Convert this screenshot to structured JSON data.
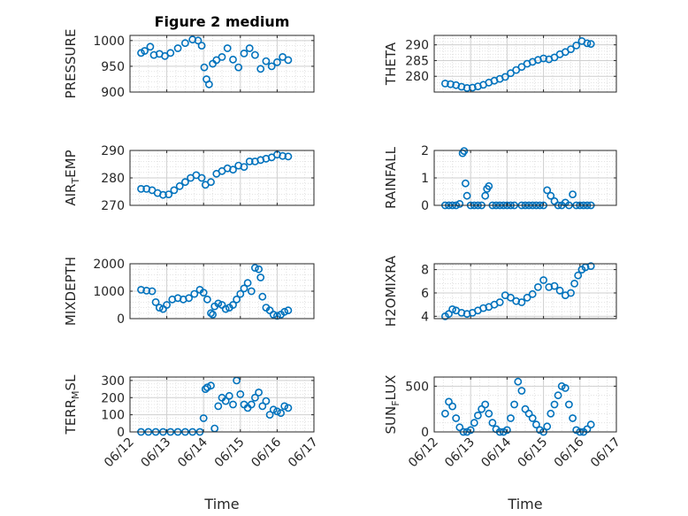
{
  "title": "Figure 2 medium",
  "xlabel": "Time",
  "x_ticks": [
    "06/12",
    "06/13",
    "06/14",
    "06/15",
    "06/16",
    "06/17"
  ],
  "colors": {
    "marker": "#0072bd",
    "axes": "#262626",
    "grid": "#dcdcdc",
    "background": "#ffffff"
  },
  "chart_data": [
    {
      "type": "scatter",
      "ylabel": "PRESSURE",
      "ylim": [
        900,
        1010
      ],
      "y_ticks": [
        "900",
        "950",
        "1000"
      ],
      "grid": true,
      "marker": "open-circle",
      "x": [
        12.3,
        12.4,
        12.55,
        12.65,
        12.8,
        12.95,
        13.1,
        13.3,
        13.5,
        13.7,
        13.85,
        13.95,
        14.02,
        14.08,
        14.15,
        14.25,
        14.35,
        14.5,
        14.65,
        14.8,
        14.95,
        15.1,
        15.25,
        15.4,
        15.55,
        15.7,
        15.85,
        16.0,
        16.15,
        16.3
      ],
      "y": [
        976,
        980,
        988,
        972,
        974,
        970,
        976,
        985,
        995,
        1002,
        1000,
        990,
        948,
        925,
        915,
        955,
        962,
        968,
        985,
        963,
        948,
        975,
        985,
        972,
        945,
        960,
        950,
        958,
        968,
        962
      ]
    },
    {
      "type": "scatter",
      "ylabel": "THETA",
      "ylim": [
        275,
        293
      ],
      "y_ticks": [
        "280",
        "285",
        "290"
      ],
      "grid": true,
      "marker": "open-circle",
      "x": [
        12.3,
        12.45,
        12.6,
        12.75,
        12.9,
        13.05,
        13.2,
        13.35,
        13.5,
        13.65,
        13.8,
        13.95,
        14.1,
        14.25,
        14.4,
        14.55,
        14.7,
        14.85,
        15.0,
        15.15,
        15.3,
        15.45,
        15.6,
        15.75,
        15.9,
        16.05,
        16.2,
        16.3
      ],
      "y": [
        277.7,
        277.5,
        277.2,
        276.7,
        276.3,
        276.4,
        276.8,
        277.3,
        278.0,
        278.6,
        279.2,
        279.8,
        281.0,
        282.0,
        283.0,
        284.0,
        284.6,
        285.2,
        285.7,
        285.4,
        286.0,
        287.0,
        287.7,
        288.6,
        289.8,
        291.2,
        290.5,
        290.3
      ]
    },
    {
      "type": "scatter",
      "ylabel": "AIR_TEMP",
      "ylim": [
        270,
        290
      ],
      "y_ticks": [
        "270",
        "280",
        "290"
      ],
      "grid": true,
      "marker": "open-circle",
      "x": [
        12.3,
        12.45,
        12.6,
        12.75,
        12.9,
        13.05,
        13.2,
        13.35,
        13.5,
        13.65,
        13.8,
        13.95,
        14.05,
        14.2,
        14.35,
        14.5,
        14.65,
        14.8,
        14.95,
        15.1,
        15.25,
        15.4,
        15.55,
        15.7,
        15.85,
        16.0,
        16.15,
        16.3
      ],
      "y": [
        276.0,
        276.0,
        275.5,
        274.5,
        273.8,
        274.0,
        275.5,
        277.0,
        278.5,
        280.0,
        281.0,
        280.0,
        277.5,
        278.5,
        281.5,
        282.5,
        283.5,
        283.0,
        284.5,
        284.0,
        286.0,
        286.0,
        286.5,
        287.0,
        287.5,
        288.5,
        288.0,
        287.8
      ]
    },
    {
      "type": "scatter",
      "ylabel": "RAINFALL",
      "ylim": [
        0,
        2
      ],
      "y_ticks": [
        "0",
        "1",
        "2"
      ],
      "grid": true,
      "marker": "open-circle",
      "x": [
        12.3,
        12.4,
        12.5,
        12.6,
        12.7,
        12.78,
        12.82,
        12.86,
        12.9,
        13.0,
        13.1,
        13.2,
        13.3,
        13.4,
        13.45,
        13.5,
        13.6,
        13.7,
        13.8,
        13.9,
        14.0,
        14.1,
        14.2,
        14.4,
        14.5,
        14.6,
        14.7,
        14.8,
        14.9,
        15.0,
        15.1,
        15.2,
        15.3,
        15.4,
        15.5,
        15.6,
        15.7,
        15.8,
        15.9,
        16.0,
        16.1,
        16.2,
        16.3
      ],
      "y": [
        0,
        0,
        0,
        0,
        0.05,
        1.9,
        1.98,
        0.8,
        0.35,
        0,
        0,
        0,
        0,
        0.35,
        0.6,
        0.7,
        0,
        0,
        0,
        0,
        0,
        0,
        0,
        0,
        0,
        0,
        0,
        0,
        0,
        0,
        0.55,
        0.35,
        0.15,
        0,
        0,
        0.1,
        0,
        0.4,
        0,
        0,
        0,
        0,
        0
      ]
    },
    {
      "type": "scatter",
      "ylabel": "MIXDEPTH",
      "ylim": [
        0,
        2000
      ],
      "y_ticks": [
        "0",
        "1000",
        "2000"
      ],
      "grid": true,
      "marker": "open-circle",
      "x": [
        12.3,
        12.45,
        12.6,
        12.7,
        12.8,
        12.9,
        13.0,
        13.15,
        13.3,
        13.45,
        13.6,
        13.75,
        13.9,
        14.0,
        14.1,
        14.2,
        14.25,
        14.3,
        14.4,
        14.5,
        14.6,
        14.7,
        14.8,
        14.9,
        15.0,
        15.1,
        15.2,
        15.3,
        15.4,
        15.5,
        15.55,
        15.6,
        15.7,
        15.8,
        15.9,
        16.0,
        16.1,
        16.2,
        16.3
      ],
      "y": [
        1050,
        1020,
        1000,
        600,
        400,
        350,
        500,
        700,
        750,
        700,
        750,
        900,
        1050,
        950,
        700,
        200,
        150,
        450,
        550,
        500,
        350,
        400,
        500,
        700,
        900,
        1100,
        1300,
        1000,
        1850,
        1800,
        1500,
        800,
        400,
        300,
        150,
        100,
        150,
        250,
        300
      ]
    },
    {
      "type": "scatter",
      "ylabel": "H2OMIXRA",
      "ylim": [
        3.8,
        8.5
      ],
      "y_ticks": [
        "4",
        "6",
        "8"
      ],
      "grid": true,
      "marker": "open-circle",
      "x": [
        12.3,
        12.4,
        12.5,
        12.6,
        12.75,
        12.9,
        13.05,
        13.2,
        13.35,
        13.5,
        13.65,
        13.8,
        13.95,
        14.1,
        14.25,
        14.4,
        14.55,
        14.7,
        14.85,
        15.0,
        15.15,
        15.3,
        15.45,
        15.6,
        15.75,
        15.85,
        15.95,
        16.05,
        16.15,
        16.3
      ],
      "y": [
        4.0,
        4.2,
        4.6,
        4.5,
        4.3,
        4.2,
        4.3,
        4.5,
        4.7,
        4.8,
        5.0,
        5.2,
        5.8,
        5.6,
        5.3,
        5.2,
        5.6,
        5.9,
        6.5,
        7.1,
        6.5,
        6.6,
        6.2,
        5.8,
        6.0,
        6.8,
        7.5,
        8.0,
        8.2,
        8.3
      ]
    },
    {
      "type": "scatter",
      "ylabel": "TERR_MSL",
      "ylim": [
        0,
        320
      ],
      "y_ticks": [
        "0",
        "100",
        "200",
        "300"
      ],
      "grid": true,
      "marker": "open-circle",
      "x": [
        12.3,
        12.5,
        12.7,
        12.9,
        13.1,
        13.3,
        13.5,
        13.7,
        13.9,
        14.0,
        14.05,
        14.1,
        14.2,
        14.3,
        14.4,
        14.5,
        14.6,
        14.7,
        14.8,
        14.9,
        15.0,
        15.1,
        15.2,
        15.3,
        15.4,
        15.5,
        15.6,
        15.7,
        15.8,
        15.9,
        16.0,
        16.1,
        16.2,
        16.3
      ],
      "y": [
        0,
        0,
        0,
        0,
        0,
        0,
        0,
        0,
        0,
        80,
        250,
        260,
        270,
        20,
        150,
        200,
        180,
        210,
        160,
        300,
        220,
        160,
        140,
        160,
        200,
        230,
        150,
        180,
        100,
        130,
        120,
        110,
        150,
        140
      ]
    },
    {
      "type": "scatter",
      "ylabel": "SUN_FLUX",
      "ylim": [
        0,
        600
      ],
      "y_ticks": [
        "0",
        "500"
      ],
      "grid": true,
      "marker": "open-circle",
      "x": [
        12.3,
        12.4,
        12.5,
        12.6,
        12.7,
        12.8,
        12.9,
        13.0,
        13.1,
        13.2,
        13.3,
        13.4,
        13.5,
        13.6,
        13.7,
        13.8,
        13.9,
        14.0,
        14.1,
        14.2,
        14.3,
        14.4,
        14.5,
        14.6,
        14.7,
        14.8,
        14.9,
        15.0,
        15.1,
        15.2,
        15.3,
        15.4,
        15.5,
        15.6,
        15.7,
        15.8,
        15.9,
        16.0,
        16.1,
        16.2,
        16.3
      ],
      "y": [
        200,
        330,
        280,
        150,
        50,
        0,
        0,
        20,
        100,
        180,
        250,
        300,
        200,
        100,
        30,
        0,
        0,
        20,
        150,
        300,
        550,
        450,
        250,
        200,
        150,
        80,
        20,
        0,
        60,
        200,
        300,
        400,
        500,
        480,
        300,
        150,
        20,
        0,
        0,
        30,
        80
      ]
    }
  ]
}
